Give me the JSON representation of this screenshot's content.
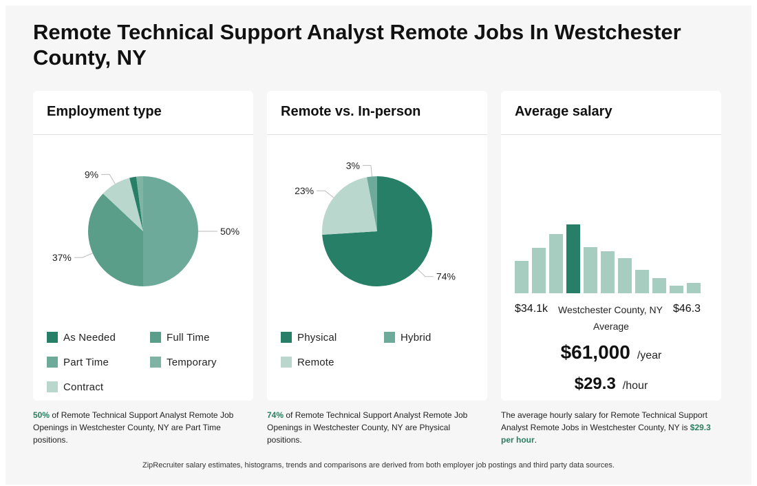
{
  "title": "Remote Technical Support Analyst Remote Jobs In Westchester County, NY",
  "colors": {
    "dark_green": "#277f68",
    "mid_green": "#5a9d88",
    "light_mid_green": "#6daa99",
    "pale_green": "#b9d7cd",
    "hist_bar": "#a6cdc0",
    "hist_highlight": "#277f68",
    "accent_text": "#2a7d5f"
  },
  "employment": {
    "heading": "Employment type",
    "legend": [
      "As Needed",
      "Full Time",
      "Part Time",
      "Temporary",
      "Contract"
    ]
  },
  "remote": {
    "heading": "Remote vs. In-person",
    "legend": [
      "Physical",
      "Hybrid",
      "Remote"
    ]
  },
  "salary": {
    "heading": "Average salary",
    "min_label": "$34.1k",
    "max_label": "$46.3",
    "location": "Westchester County, NY",
    "average_label": "Average",
    "yearly": "$61,000",
    "yearly_unit": "/year",
    "hourly": "$29.3",
    "hourly_unit": "/hour"
  },
  "footnotes": {
    "employment": {
      "highlight": "50%",
      "text": " of Remote Technical Support Analyst Remote Job Openings in Westchester County, NY are Part Time positions."
    },
    "remote": {
      "highlight": "74%",
      "text": " of Remote Technical Support Analyst Remote Job Openings in Westchester County, NY are Physical positions."
    },
    "salary": {
      "text": "The average hourly salary for Remote Technical Support Analyst Remote Jobs in Westchester County, NY is ",
      "highlight": "$29.3 per hour",
      "end": "."
    }
  },
  "source_note": "ZipRecruiter salary estimates, histograms, trends and comparisons are derived from both employer job postings and third party data sources.",
  "chart_data": [
    {
      "type": "pie",
      "title": "Employment type",
      "slices": [
        {
          "name": "Part Time",
          "value": 50,
          "label": "50%",
          "color": "#6daa99"
        },
        {
          "name": "Full Time",
          "value": 37,
          "label": "37%",
          "color": "#5a9d88"
        },
        {
          "name": "Contract",
          "value": 9,
          "label": "9%",
          "color": "#b9d7cd"
        },
        {
          "name": "As Needed",
          "value": 2,
          "label": "",
          "color": "#277f68"
        },
        {
          "name": "Temporary",
          "value": 2,
          "label": "",
          "color": "#7fb3a4"
        }
      ]
    },
    {
      "type": "pie",
      "title": "Remote vs. In-person",
      "slices": [
        {
          "name": "Physical",
          "value": 74,
          "label": "74%",
          "color": "#277f68"
        },
        {
          "name": "Remote",
          "value": 23,
          "label": "23%",
          "color": "#b9d7cd"
        },
        {
          "name": "Hybrid",
          "value": 3,
          "label": "3%",
          "color": "#6daa99"
        }
      ]
    },
    {
      "type": "bar",
      "title": "Average salary",
      "values": [
        47,
        66,
        86,
        100,
        67,
        61,
        51,
        34,
        22,
        11,
        15
      ],
      "highlight_index": 3,
      "xlabel": "",
      "ylabel": ""
    }
  ]
}
